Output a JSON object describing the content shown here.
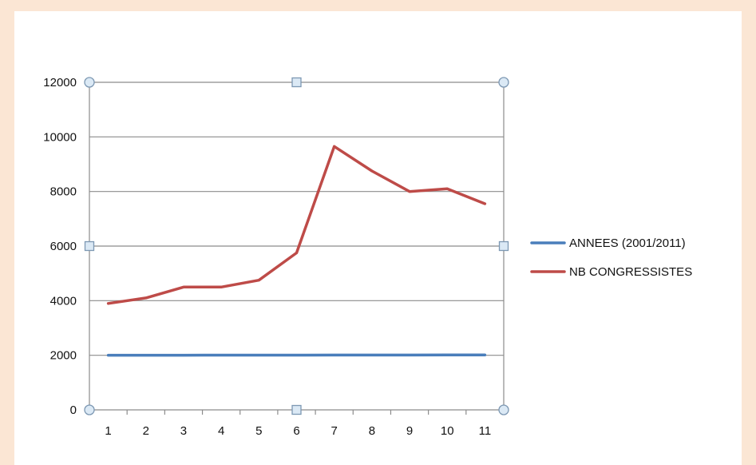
{
  "chart_data": {
    "type": "line",
    "categories": [
      "1",
      "2",
      "3",
      "4",
      "5",
      "6",
      "7",
      "8",
      "9",
      "10",
      "11"
    ],
    "x": [
      1,
      2,
      3,
      4,
      5,
      6,
      7,
      8,
      9,
      10,
      11
    ],
    "series": [
      {
        "name": "ANNEES (2001/2011)",
        "color": "#4a7ebb",
        "values": [
          2001,
          2002,
          2003,
          2004,
          2005,
          2006,
          2007,
          2008,
          2009,
          2010,
          2011
        ]
      },
      {
        "name": "NB CONGRESSISTES",
        "color": "#be4b48",
        "values": [
          3900,
          4100,
          4500,
          4500,
          4750,
          5750,
          9650,
          8750,
          8000,
          8100,
          7550
        ]
      }
    ],
    "y_ticks": [
      0,
      2000,
      4000,
      6000,
      8000,
      10000,
      12000
    ],
    "ylim": [
      0,
      12000
    ],
    "grid": true,
    "legend_position": "right"
  },
  "colors": {
    "page_background": "#fbe6d4",
    "chart_background": "#ffffff",
    "gridline": "#8c8c8c",
    "selection_handle_fill": "#dbe9f5",
    "selection_handle_stroke": "#7d98b3"
  }
}
